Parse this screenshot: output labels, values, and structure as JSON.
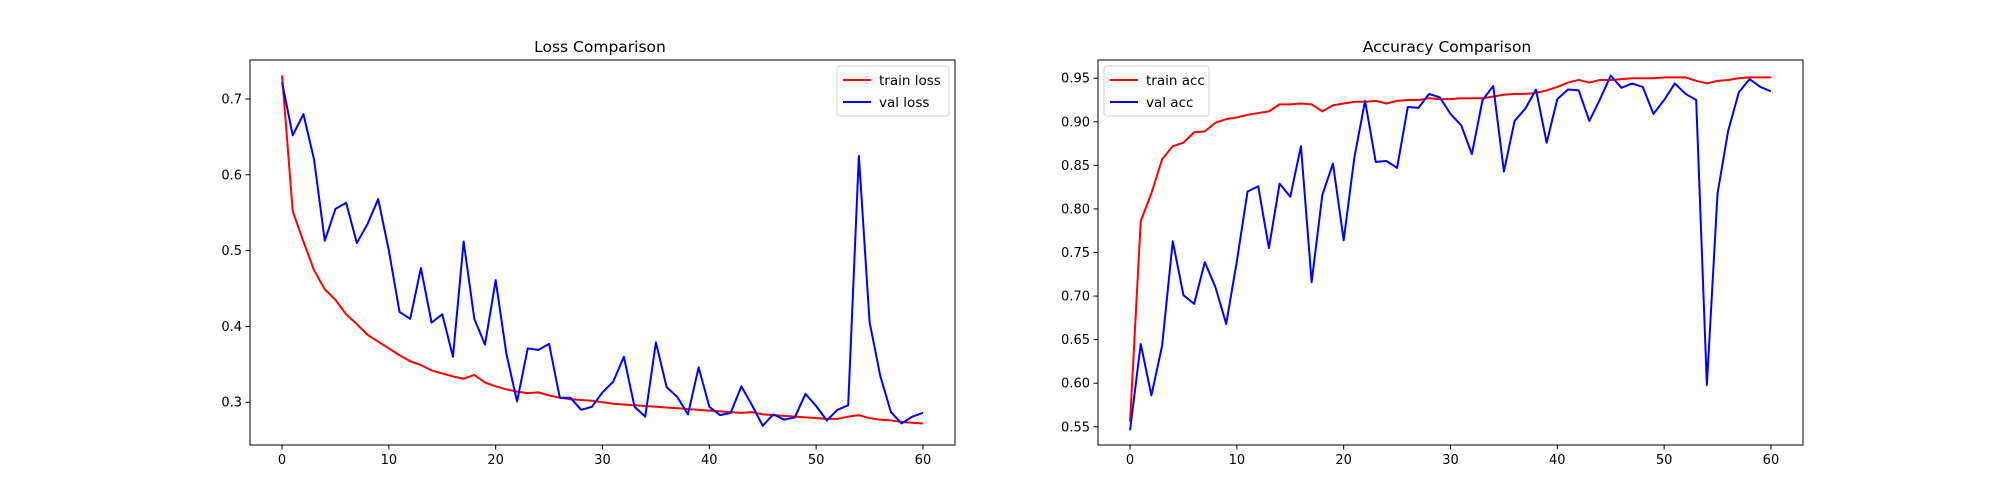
{
  "chart_data": [
    {
      "type": "line",
      "title": "Loss Comparison",
      "xlabel": "",
      "ylabel": "",
      "xlim": [
        -3,
        63
      ],
      "ylim": [
        0.2436,
        0.7514
      ],
      "xticks": [
        0,
        10,
        20,
        30,
        40,
        50,
        60
      ],
      "yticks": [
        0.3,
        0.4,
        0.5,
        0.6,
        0.7
      ],
      "xtick_labels": [
        "0",
        "10",
        "20",
        "30",
        "40",
        "50",
        "60"
      ],
      "ytick_labels": [
        "0.3",
        "0.4",
        "0.5",
        "0.6",
        "0.7"
      ],
      "grid": false,
      "legend_position": "upper right",
      "x": [
        0,
        1,
        2,
        3,
        4,
        5,
        6,
        7,
        8,
        9,
        10,
        11,
        12,
        13,
        14,
        15,
        16,
        17,
        18,
        19,
        20,
        21,
        22,
        23,
        24,
        25,
        26,
        27,
        28,
        29,
        30,
        31,
        32,
        33,
        34,
        35,
        36,
        37,
        38,
        39,
        40,
        41,
        42,
        43,
        44,
        45,
        46,
        47,
        48,
        49,
        50,
        51,
        52,
        53,
        54,
        55,
        56,
        57,
        58,
        59,
        60
      ],
      "series": [
        {
          "name": "train loss",
          "color": "#ff0000",
          "values": [
            0.731,
            0.552,
            0.512,
            0.474,
            0.449,
            0.435,
            0.416,
            0.403,
            0.389,
            0.38,
            0.371,
            0.362,
            0.354,
            0.349,
            0.342,
            0.338,
            0.334,
            0.331,
            0.336,
            0.326,
            0.321,
            0.317,
            0.314,
            0.312,
            0.313,
            0.309,
            0.306,
            0.304,
            0.303,
            0.302,
            0.3,
            0.298,
            0.297,
            0.296,
            0.295,
            0.294,
            0.293,
            0.292,
            0.291,
            0.29,
            0.289,
            0.288,
            0.287,
            0.286,
            0.287,
            0.284,
            0.283,
            0.282,
            0.281,
            0.28,
            0.279,
            0.278,
            0.278,
            0.281,
            0.283,
            0.279,
            0.277,
            0.276,
            0.274,
            0.273,
            0.272
          ]
        },
        {
          "name": "val loss",
          "color": "#0000ff",
          "values": [
            0.722,
            0.652,
            0.68,
            0.62,
            0.513,
            0.555,
            0.563,
            0.51,
            0.535,
            0.568,
            0.5,
            0.419,
            0.41,
            0.477,
            0.405,
            0.416,
            0.36,
            0.512,
            0.41,
            0.376,
            0.461,
            0.364,
            0.301,
            0.371,
            0.369,
            0.377,
            0.306,
            0.306,
            0.29,
            0.294,
            0.313,
            0.327,
            0.36,
            0.294,
            0.281,
            0.379,
            0.32,
            0.307,
            0.284,
            0.346,
            0.294,
            0.283,
            0.286,
            0.321,
            0.296,
            0.269,
            0.284,
            0.277,
            0.28,
            0.311,
            0.295,
            0.276,
            0.29,
            0.296,
            0.625,
            0.406,
            0.335,
            0.287,
            0.272,
            0.281,
            0.286
          ]
        }
      ]
    },
    {
      "type": "line",
      "title": "Accuracy Comparison",
      "xlabel": "",
      "ylabel": "",
      "xlim": [
        -3,
        63
      ],
      "ylim": [
        0.5291,
        0.9709
      ],
      "xticks": [
        0,
        10,
        20,
        30,
        40,
        50,
        60
      ],
      "yticks": [
        0.55,
        0.6,
        0.65,
        0.7,
        0.75,
        0.8,
        0.85,
        0.9,
        0.95
      ],
      "xtick_labels": [
        "0",
        "10",
        "20",
        "30",
        "40",
        "50",
        "60"
      ],
      "ytick_labels": [
        "0.55",
        "0.60",
        "0.65",
        "0.70",
        "0.75",
        "0.80",
        "0.85",
        "0.90",
        "0.95"
      ],
      "grid": false,
      "legend_position": "upper left",
      "x": [
        0,
        1,
        2,
        3,
        4,
        5,
        6,
        7,
        8,
        9,
        10,
        11,
        12,
        13,
        14,
        15,
        16,
        17,
        18,
        19,
        20,
        21,
        22,
        23,
        24,
        25,
        26,
        27,
        28,
        29,
        30,
        31,
        32,
        33,
        34,
        35,
        36,
        37,
        38,
        39,
        40,
        41,
        42,
        43,
        44,
        45,
        46,
        47,
        48,
        49,
        50,
        51,
        52,
        53,
        54,
        55,
        56,
        57,
        58,
        59,
        60
      ],
      "series": [
        {
          "name": "train acc",
          "color": "#ff0000",
          "values": [
            0.556,
            0.786,
            0.818,
            0.857,
            0.872,
            0.876,
            0.888,
            0.889,
            0.899,
            0.903,
            0.905,
            0.908,
            0.91,
            0.912,
            0.92,
            0.92,
            0.921,
            0.92,
            0.912,
            0.919,
            0.921,
            0.923,
            0.923,
            0.924,
            0.921,
            0.924,
            0.925,
            0.925,
            0.927,
            0.926,
            0.926,
            0.927,
            0.927,
            0.927,
            0.929,
            0.931,
            0.932,
            0.932,
            0.933,
            0.936,
            0.94,
            0.945,
            0.948,
            0.945,
            0.948,
            0.948,
            0.949,
            0.95,
            0.95,
            0.95,
            0.951,
            0.951,
            0.951,
            0.947,
            0.944,
            0.947,
            0.948,
            0.95,
            0.951,
            0.951,
            0.951
          ]
        },
        {
          "name": "val acc",
          "color": "#0000ff",
          "values": [
            0.546,
            0.645,
            0.586,
            0.643,
            0.763,
            0.701,
            0.691,
            0.739,
            0.71,
            0.668,
            0.74,
            0.82,
            0.826,
            0.755,
            0.829,
            0.814,
            0.872,
            0.716,
            0.816,
            0.852,
            0.764,
            0.859,
            0.924,
            0.854,
            0.855,
            0.847,
            0.917,
            0.916,
            0.932,
            0.928,
            0.909,
            0.896,
            0.863,
            0.925,
            0.941,
            0.843,
            0.901,
            0.915,
            0.937,
            0.876,
            0.926,
            0.937,
            0.936,
            0.901,
            0.926,
            0.953,
            0.939,
            0.944,
            0.94,
            0.909,
            0.925,
            0.944,
            0.932,
            0.925,
            0.598,
            0.818,
            0.89,
            0.934,
            0.949,
            0.94,
            0.935
          ]
        }
      ]
    }
  ]
}
